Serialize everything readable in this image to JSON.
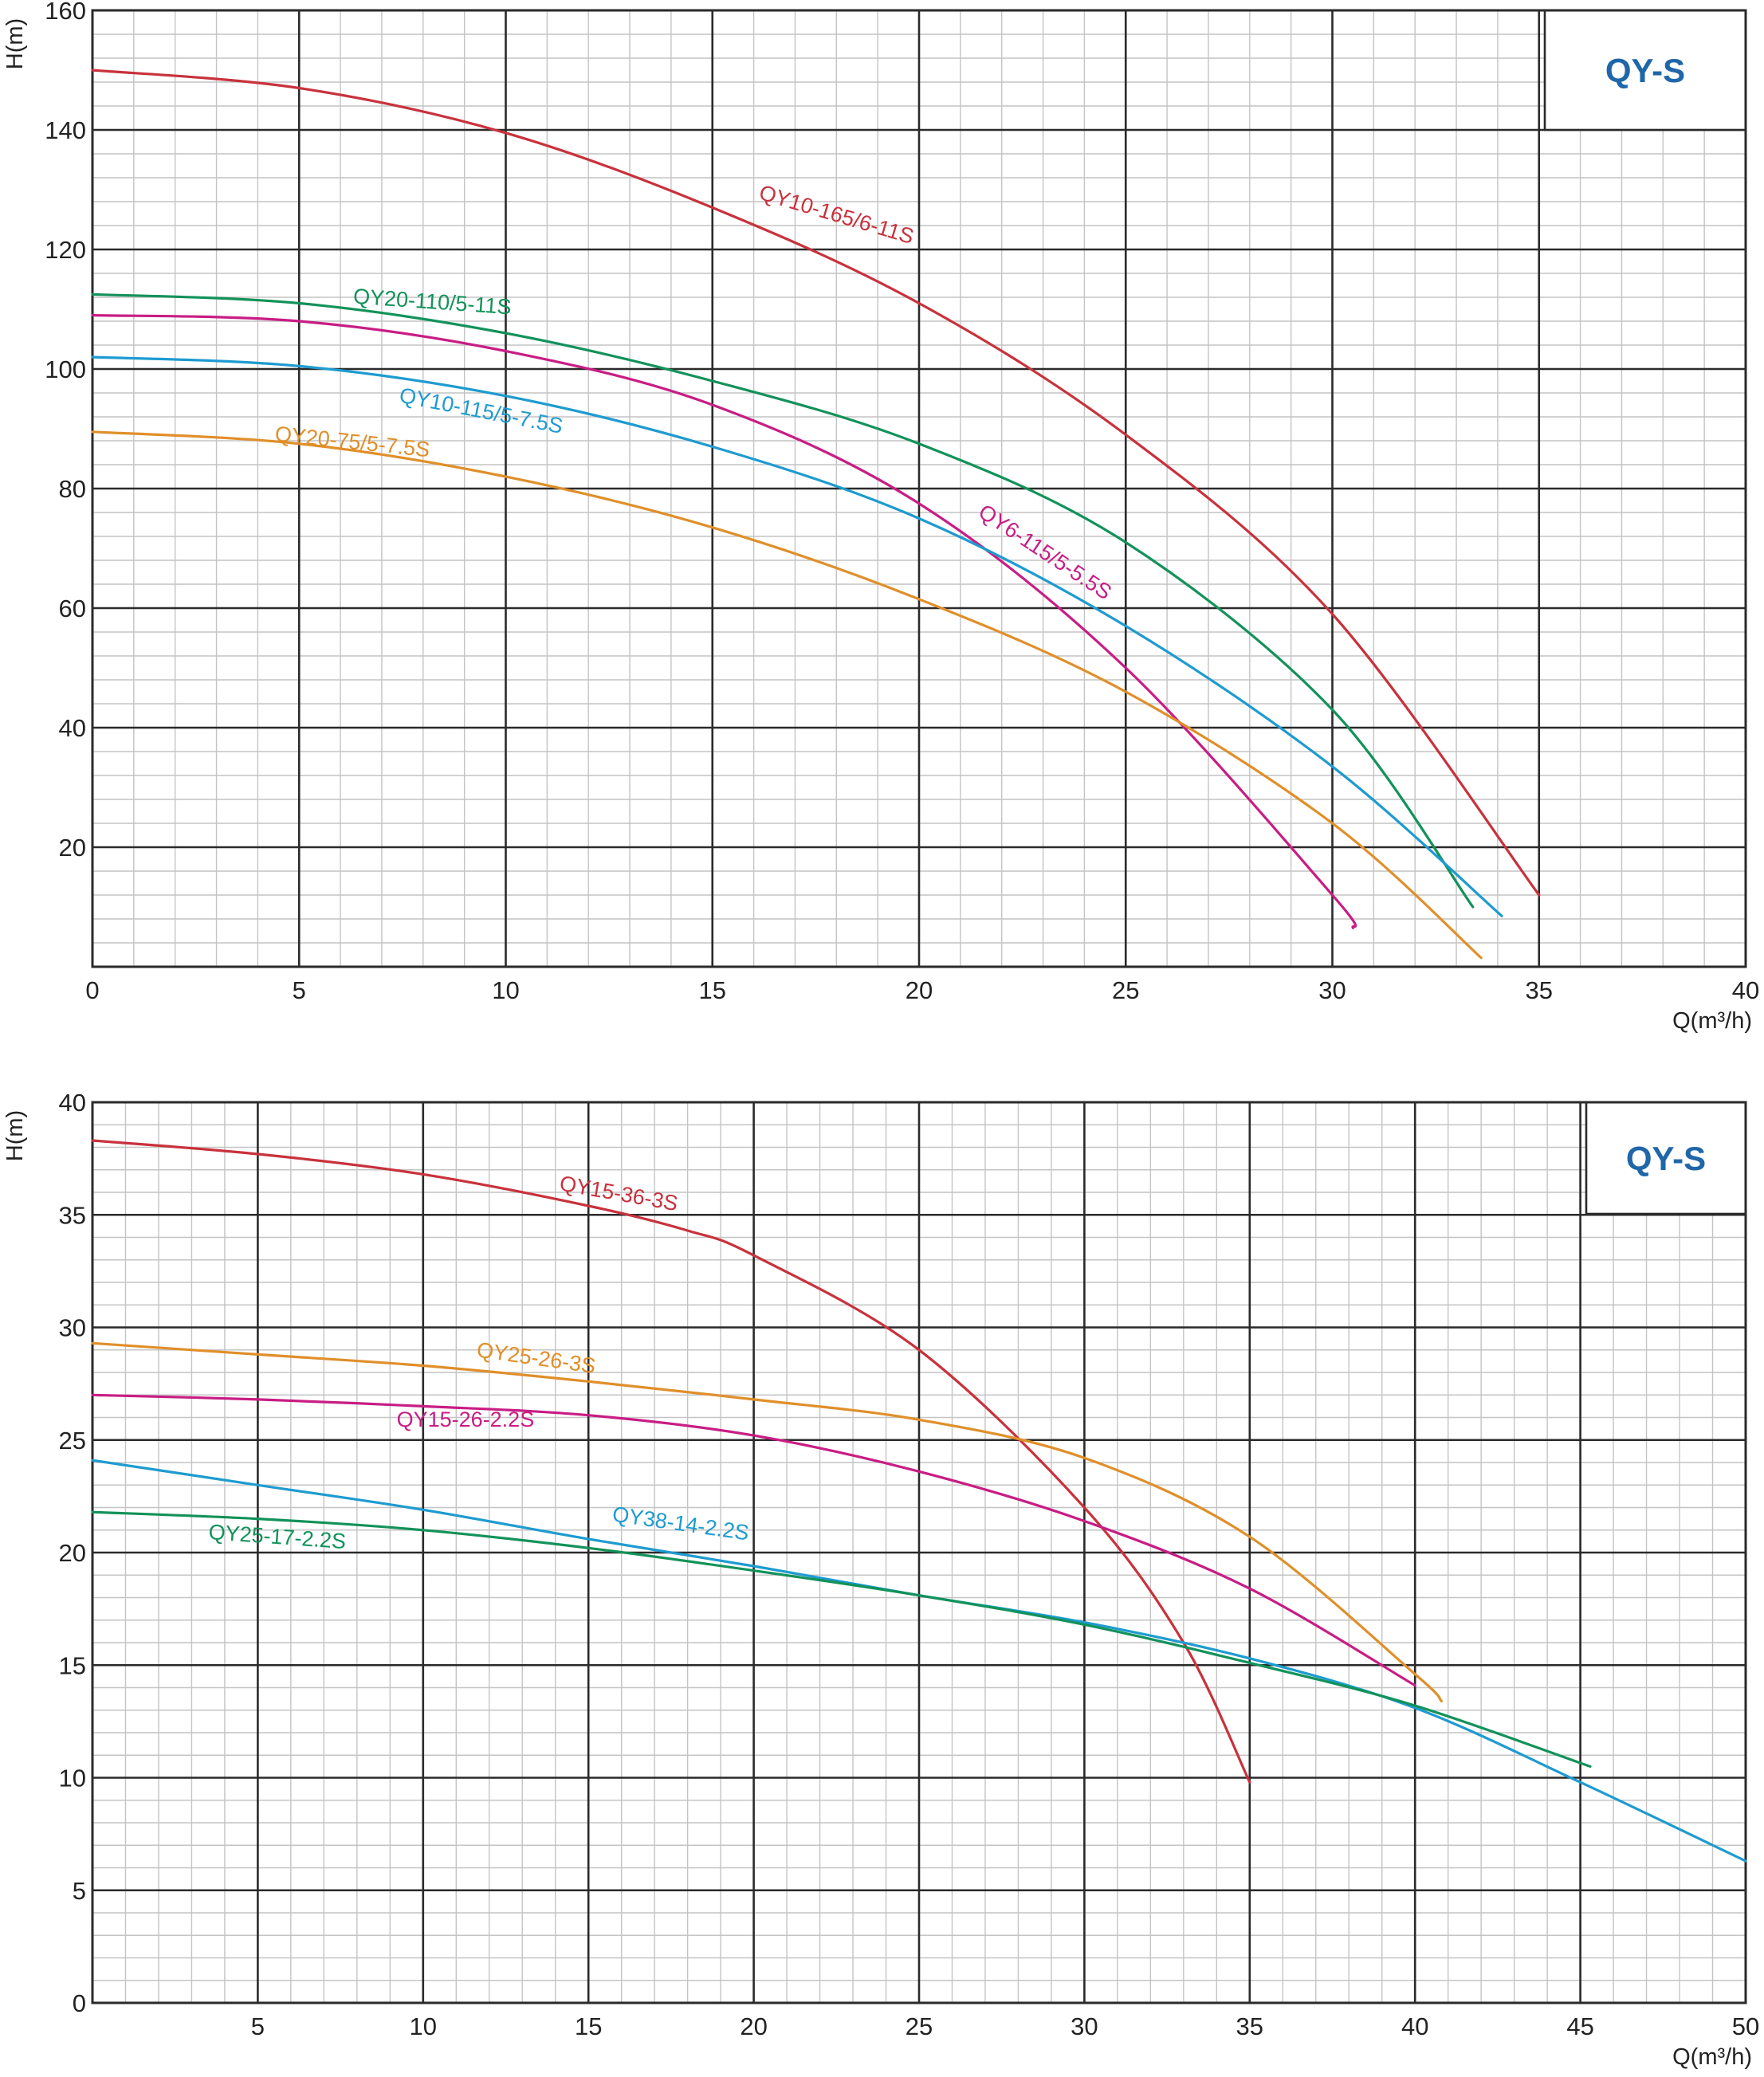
{
  "chart_data": [
    {
      "type": "line",
      "badge": "QY-S",
      "xlabel": "Q(m³/h)",
      "ylabel": "H(m)",
      "xlim": [
        0,
        40
      ],
      "ylim": [
        0,
        160
      ],
      "x_ticks": [
        0,
        5,
        10,
        15,
        20,
        25,
        30,
        35,
        40
      ],
      "y_ticks": [
        20,
        40,
        60,
        80,
        100,
        120,
        140,
        160
      ],
      "grid": true,
      "series": [
        {
          "name": "QY10-165/6-11S",
          "color": "#c8323c",
          "x": [
            0,
            5,
            10,
            15,
            20,
            25,
            30,
            35
          ],
          "y": [
            150,
            147,
            139.5,
            127,
            111,
            89,
            59,
            12
          ],
          "label_pos": [
            16.1,
            128.5
          ],
          "label_angle": 16.5
        },
        {
          "name": "QY20-110/5-11S",
          "color": "#12925a",
          "x": [
            0,
            5,
            10,
            15,
            20,
            25,
            30,
            33.4
          ],
          "y": [
            112.5,
            111,
            106,
            98,
            87.5,
            71,
            43,
            10
          ],
          "label_pos": [
            6.3,
            111
          ],
          "label_angle": 4
        },
        {
          "name": "QY6-115/5-5.5S",
          "color": "#c81d84",
          "x": [
            0,
            5,
            10,
            15,
            20,
            25,
            30,
            30.5
          ],
          "y": [
            109,
            108,
            103,
            94,
            77.5,
            50,
            12,
            6.5
          ],
          "label_pos": [
            21.4,
            75.5
          ],
          "label_angle": 33.5
        },
        {
          "name": "QY10-115/5-7.5S",
          "color": "#1e9bd0",
          "x": [
            0,
            5,
            10,
            15,
            20,
            25,
            30,
            34.1
          ],
          "y": [
            102,
            100.5,
            95.5,
            87,
            75,
            57,
            33.5,
            8.5
          ],
          "label_pos": [
            7.4,
            94.5
          ],
          "label_angle": 11
        },
        {
          "name": "QY20-75/5-7.5S",
          "color": "#e08f2a",
          "x": [
            0,
            5,
            10,
            15,
            20,
            25,
            30,
            33.6
          ],
          "y": [
            89.5,
            87.5,
            82,
            73.5,
            61.5,
            46,
            24,
            1.5
          ],
          "label_pos": [
            4.4,
            88
          ],
          "label_angle": 6
        }
      ]
    },
    {
      "type": "line",
      "badge": "QY-S",
      "xlabel": "Q(m³/h)",
      "ylabel": "H(m)",
      "xlim": [
        0,
        50
      ],
      "ylim": [
        0,
        40
      ],
      "x_ticks": [
        5,
        10,
        15,
        20,
        25,
        30,
        35,
        40,
        45,
        50
      ],
      "y_ticks": [
        0,
        5,
        10,
        15,
        20,
        25,
        30,
        35,
        40
      ],
      "grid": true,
      "series": [
        {
          "name": "QY15-36-3S",
          "color": "#c8323c",
          "x": [
            0,
            5,
            10,
            15,
            18,
            20,
            25,
            30,
            33,
            35
          ],
          "y": [
            38.3,
            37.7,
            36.8,
            35.4,
            34.3,
            33.2,
            29,
            22,
            16,
            9.8
          ],
          "label_pos": [
            14.1,
            36.1
          ],
          "label_angle": 10
        },
        {
          "name": "QY25-26-3S",
          "color": "#e08f2a",
          "x": [
            0,
            5,
            10,
            15,
            20,
            25,
            30,
            35,
            40,
            40.8
          ],
          "y": [
            29.3,
            28.8,
            28.3,
            27.6,
            26.8,
            25.9,
            24.2,
            20.7,
            14.6,
            13.4
          ],
          "label_pos": [
            11.6,
            28.7
          ],
          "label_angle": 8
        },
        {
          "name": "QY15-26-2.2S",
          "color": "#c81d84",
          "x": [
            0,
            5,
            10,
            15,
            20,
            25,
            30,
            35,
            40
          ],
          "y": [
            27,
            26.8,
            26.5,
            26.1,
            25.2,
            23.6,
            21.4,
            18.4,
            14.1
          ],
          "label_pos": [
            9.2,
            25.6
          ],
          "label_angle": 0
        },
        {
          "name": "QY38-14-2.2S",
          "color": "#1e9bd0",
          "x": [
            0,
            5,
            10,
            15,
            20,
            25,
            30,
            35,
            40,
            45,
            50
          ],
          "y": [
            24.1,
            23,
            21.9,
            20.6,
            19.4,
            18.1,
            16.9,
            15.3,
            13.1,
            9.8,
            6.3
          ],
          "label_pos": [
            15.7,
            21.4
          ],
          "label_angle": 8
        },
        {
          "name": "QY25-17-2.2S",
          "color": "#12925a",
          "x": [
            0,
            5,
            10,
            15,
            20,
            25,
            30,
            35,
            40,
            45.3
          ],
          "y": [
            21.8,
            21.5,
            21,
            20.2,
            19.2,
            18.1,
            16.8,
            15.1,
            13.2,
            10.5
          ],
          "label_pos": [
            3.5,
            20.6
          ],
          "label_angle": 4
        }
      ]
    }
  ]
}
